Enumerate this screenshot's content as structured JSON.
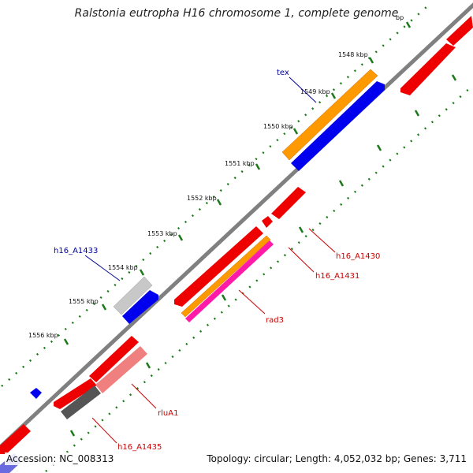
{
  "title": "Ralstonia eutropha H16 chromosome 1, complete genome",
  "footer": {
    "accession": "Accession: NC_008313",
    "stats": "Topology: circular; Length: 4,052,032 bp; Genes: 3,711"
  },
  "colors": {
    "backbone": "#808080",
    "tick": "#1a7a1a",
    "label_red": "#cc0000",
    "label_blue": "#000099"
  },
  "ticks": [
    {
      "label": "bp"
    },
    {
      "label": "1548 kbp"
    },
    {
      "label": "1549 kbp"
    },
    {
      "label": "1550 kbp"
    },
    {
      "label": "1551 kbp"
    },
    {
      "label": "1552 kbp"
    },
    {
      "label": "1553 kbp"
    },
    {
      "label": "1554 kbp"
    },
    {
      "label": "1555 kbp"
    },
    {
      "label": "1556 kbp"
    }
  ],
  "gene_labels": [
    {
      "text": "tex",
      "color": "#000099"
    },
    {
      "text": "h16_A1433",
      "color": "#000099"
    },
    {
      "text": "h16_A1430",
      "color": "#cc0000"
    },
    {
      "text": "h16_A1431",
      "color": "#cc0000"
    },
    {
      "text": "rad3",
      "color": "#cc0000"
    },
    {
      "text": "rluA1",
      "color": "#cc0000"
    },
    {
      "text": "h16_A1435",
      "color": "#cc0000"
    }
  ]
}
